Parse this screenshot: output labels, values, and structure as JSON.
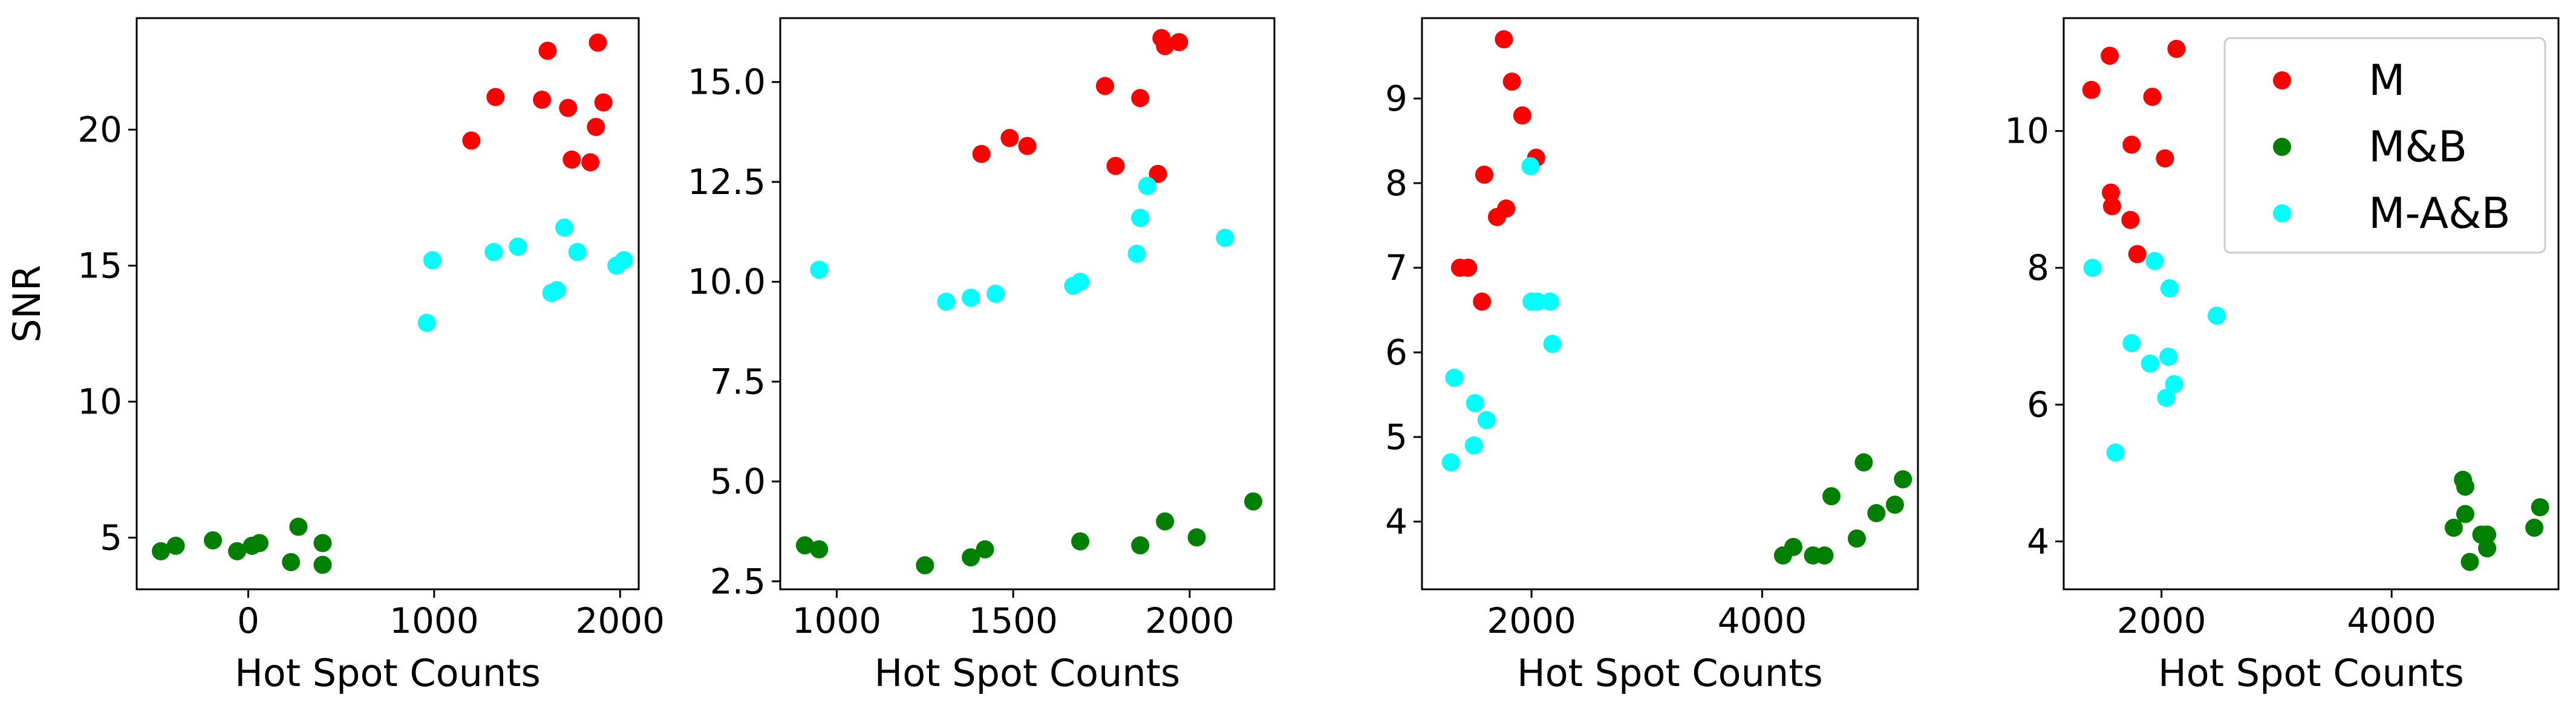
{
  "colors": {
    "M": "#ff0000",
    "M&B": "#008000",
    "M-A&B": "#00ffff",
    "legend_border": "#cccccc"
  },
  "legend": {
    "placement": "top-right of panel 4",
    "entries": [
      {
        "label": "M",
        "color": "#ff0000"
      },
      {
        "label": "M&B",
        "color": "#008000"
      },
      {
        "label": "M-A&B",
        "color": "#00ffff"
      }
    ]
  },
  "chart_data": [
    {
      "type": "scatter",
      "xlabel": "Hot Spot Counts",
      "ylabel": "SNR",
      "xlim": [
        -600,
        2100
      ],
      "ylim": [
        3.1,
        24.1
      ],
      "xticks": [
        0,
        1000,
        2000
      ],
      "yticks": [
        5,
        10,
        15,
        20
      ],
      "series": [
        {
          "name": "M",
          "color": "#ff0000",
          "x": [
            1200,
            1330,
            1580,
            1610,
            1720,
            1740,
            1840,
            1870,
            1880,
            1910
          ],
          "y": [
            19.6,
            21.2,
            21.1,
            22.9,
            20.8,
            18.9,
            18.8,
            20.1,
            23.2,
            21.0
          ]
        },
        {
          "name": "M&B",
          "color": "#008000",
          "x": [
            -470,
            -390,
            -190,
            -60,
            20,
            60,
            230,
            270,
            400,
            400
          ],
          "y": [
            4.5,
            4.7,
            4.9,
            4.5,
            4.7,
            4.8,
            4.1,
            5.4,
            4.0,
            4.8
          ]
        },
        {
          "name": "M-A&B",
          "color": "#00ffff",
          "x": [
            960,
            990,
            1320,
            1450,
            1630,
            1660,
            1700,
            1770,
            1980,
            2020
          ],
          "y": [
            12.9,
            15.2,
            15.5,
            15.7,
            14.0,
            14.1,
            16.4,
            15.5,
            15.0,
            15.2
          ]
        }
      ]
    },
    {
      "type": "scatter",
      "xlabel": "Hot Spot Counts",
      "ylabel": "",
      "xlim": [
        840,
        2240
      ],
      "ylim": [
        2.3,
        16.6
      ],
      "xticks": [
        1000,
        1500,
        2000
      ],
      "yticks": [
        2.5,
        5.0,
        7.5,
        10.0,
        12.5,
        15.0
      ],
      "tick_labels_y": [
        "2.5",
        "5.0",
        "7.5",
        "10.0",
        "12.5",
        "15.0"
      ],
      "series": [
        {
          "name": "M",
          "color": "#ff0000",
          "x": [
            1410,
            1490,
            1540,
            1760,
            1790,
            1860,
            1910,
            1920,
            1930,
            1970
          ],
          "y": [
            13.2,
            13.6,
            13.4,
            14.9,
            12.9,
            14.6,
            12.7,
            16.1,
            15.9,
            16.0
          ]
        },
        {
          "name": "M&B",
          "color": "#008000",
          "x": [
            910,
            950,
            1250,
            1380,
            1420,
            1690,
            1860,
            1930,
            2020,
            2180
          ],
          "y": [
            3.4,
            3.3,
            2.9,
            3.1,
            3.3,
            3.5,
            3.4,
            4.0,
            3.6,
            4.5
          ]
        },
        {
          "name": "M-A&B",
          "color": "#00ffff",
          "x": [
            950,
            1310,
            1380,
            1450,
            1670,
            1690,
            1850,
            1860,
            1880,
            2100
          ],
          "y": [
            10.3,
            9.5,
            9.6,
            9.7,
            9.9,
            10.0,
            10.7,
            11.6,
            12.4,
            11.1
          ]
        }
      ]
    },
    {
      "type": "scatter",
      "xlabel": "Hot Spot Counts",
      "ylabel": "",
      "xlim": [
        1050,
        5350
      ],
      "ylim": [
        3.2,
        9.95
      ],
      "xticks": [
        2000,
        4000
      ],
      "yticks": [
        4,
        5,
        6,
        7,
        8,
        9
      ],
      "series": [
        {
          "name": "M",
          "color": "#ff0000",
          "x": [
            1380,
            1450,
            1570,
            1590,
            1700,
            1780,
            1760,
            1830,
            1920,
            2040
          ],
          "y": [
            7.0,
            7.0,
            6.6,
            8.1,
            7.6,
            7.7,
            9.7,
            9.2,
            8.8,
            8.3
          ]
        },
        {
          "name": "M&B",
          "color": "#008000",
          "x": [
            4180,
            4270,
            4440,
            4540,
            4600,
            4820,
            4880,
            4990,
            5150,
            5220
          ],
          "y": [
            3.6,
            3.7,
            3.6,
            3.6,
            4.3,
            3.8,
            4.7,
            4.1,
            4.2,
            4.5
          ]
        },
        {
          "name": "M-A&B",
          "color": "#00ffff",
          "x": [
            1300,
            1330,
            1500,
            1510,
            1610,
            2000,
            2050,
            2160,
            2180,
            1990
          ],
          "y": [
            4.7,
            5.7,
            4.9,
            5.4,
            5.2,
            6.6,
            6.6,
            6.6,
            6.1,
            8.2
          ]
        }
      ]
    },
    {
      "type": "scatter",
      "xlabel": "Hot Spot Counts",
      "ylabel": "",
      "xlim": [
        1150,
        5450
      ],
      "ylim": [
        3.3,
        11.65
      ],
      "xticks": [
        2000,
        4000
      ],
      "yticks": [
        4,
        6,
        8,
        10
      ],
      "series": [
        {
          "name": "M",
          "color": "#ff0000",
          "x": [
            1390,
            1550,
            1560,
            1570,
            1730,
            1740,
            1790,
            1920,
            2030,
            2130
          ],
          "y": [
            10.6,
            11.1,
            9.1,
            8.9,
            8.7,
            9.8,
            8.2,
            10.5,
            9.6,
            11.2
          ]
        },
        {
          "name": "M&B",
          "color": "#008000",
          "x": [
            4540,
            4620,
            4640,
            4680,
            4640,
            4780,
            4830,
            4830,
            5240,
            5290
          ],
          "y": [
            4.2,
            4.9,
            4.8,
            3.7,
            4.4,
            4.1,
            3.9,
            4.1,
            4.2,
            4.5
          ]
        },
        {
          "name": "M-A&B",
          "color": "#00ffff",
          "x": [
            1400,
            1600,
            1740,
            1900,
            1940,
            2040,
            2060,
            2070,
            2110,
            2480
          ],
          "y": [
            8.0,
            5.3,
            6.9,
            6.6,
            8.1,
            6.1,
            6.7,
            7.7,
            6.3,
            7.3
          ]
        }
      ]
    }
  ]
}
